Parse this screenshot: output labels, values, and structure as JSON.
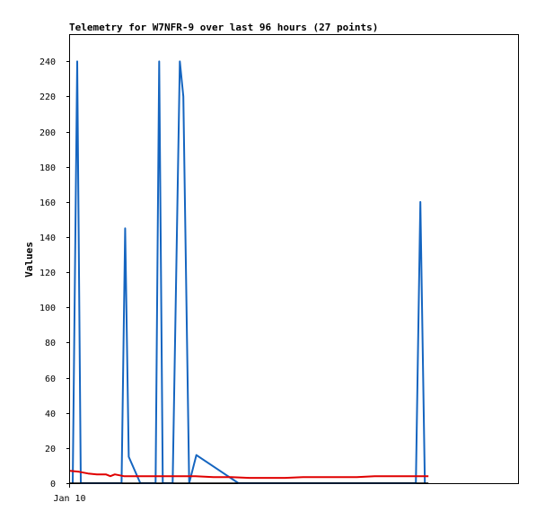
{
  "chart_data": {
    "type": "line",
    "title": "Telemetry for W7NFR-9 over last 96 hours (27 points)",
    "xlabel": "",
    "ylabel": "Values",
    "x_tick_labels": [
      "Jan 10"
    ],
    "ylim": [
      0,
      255
    ],
    "yticks": [
      0,
      20,
      40,
      60,
      80,
      100,
      120,
      140,
      160,
      180,
      200,
      220,
      240
    ],
    "xlim": [
      0,
      100
    ],
    "grid": false,
    "legend": "none",
    "series": [
      {
        "color": "#1565c0",
        "x": [
          0.6,
          1.6,
          2.4,
          11.5,
          12.3,
          13.1,
          15.7,
          19.1,
          19.9,
          20.7,
          22.9,
          24.5,
          25.3,
          26.6,
          28.2,
          37.6,
          77.2,
          78.2,
          79.2
        ],
        "y": [
          0,
          240,
          0,
          0,
          145,
          15,
          0,
          0,
          240,
          0,
          0,
          240,
          220,
          0,
          16,
          0,
          0,
          160,
          0
        ]
      },
      {
        "color": "#e00000",
        "x": [
          0,
          2,
          4,
          6,
          8,
          9,
          10,
          12,
          16,
          20,
          24,
          28,
          32,
          36,
          40,
          44,
          48,
          52,
          56,
          60,
          64,
          68,
          72,
          76,
          80
        ],
        "y": [
          7,
          6.5,
          5.5,
          5,
          5,
          4,
          5,
          4,
          4,
          4,
          4,
          4,
          3.5,
          3.5,
          3,
          3,
          3,
          3.5,
          3.5,
          3.5,
          3.5,
          4,
          4,
          4,
          4
        ]
      },
      {
        "color": "#000000",
        "x": [
          0,
          80
        ],
        "y": [
          0,
          0
        ]
      }
    ]
  }
}
